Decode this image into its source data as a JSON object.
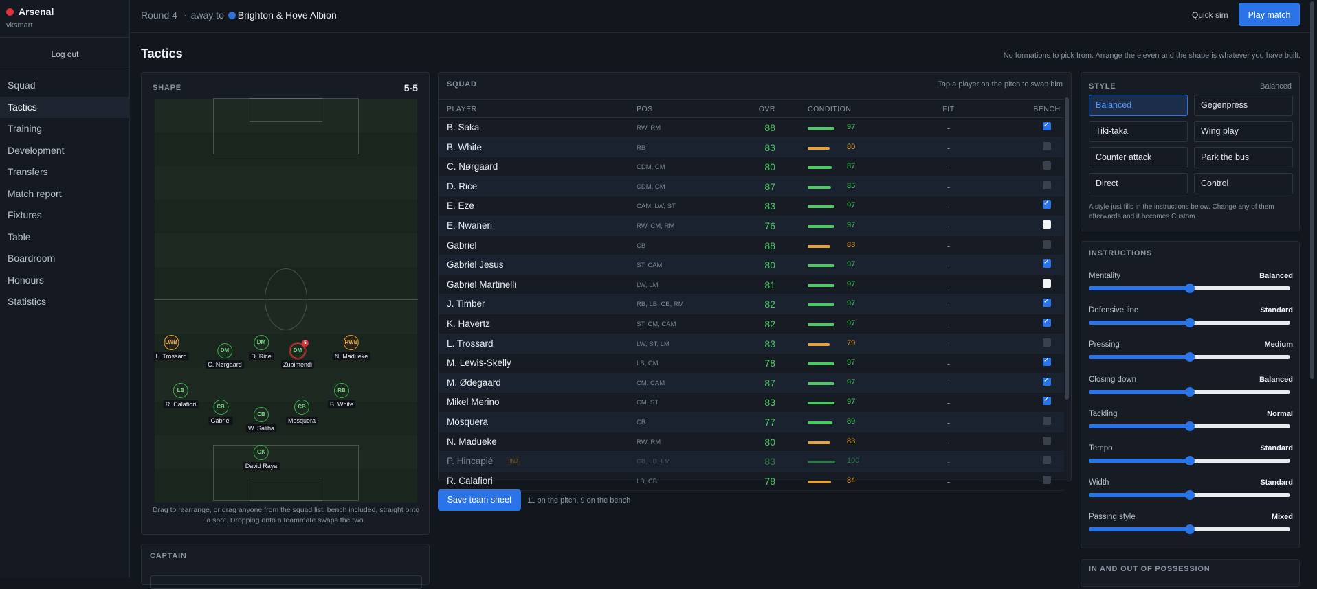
{
  "sidebar": {
    "club": "Arsenal",
    "user": "vksmart",
    "logout": "Log out",
    "items": [
      "Squad",
      "Tactics",
      "Training",
      "Development",
      "Transfers",
      "Match report",
      "Fixtures",
      "Table",
      "Boardroom",
      "Honours",
      "Statistics"
    ],
    "active": "Tactics"
  },
  "topbar": {
    "round": "Round 4",
    "away": "away to",
    "opponent": "Brighton & Hove Albion",
    "quick_sim": "Quick sim",
    "play": "Play match"
  },
  "page": {
    "title": "Tactics",
    "hint": "No formations to pick from. Arrange the eleven and the shape is whatever you have built."
  },
  "shape": {
    "label": "SHAPE",
    "formation": "5-5",
    "caption": "Drag to rearrange, or drag anyone from the squad list, bench included, straight onto a spot. Dropping onto a teammate swaps the two.",
    "players": [
      {
        "pos": "LWB",
        "name": "L. Trossard",
        "wide": true
      },
      {
        "pos": "DM",
        "name": "C. Nørgaard"
      },
      {
        "pos": "DM",
        "name": "D. Rice"
      },
      {
        "pos": "DM",
        "name": "Zubimendi",
        "selected": true,
        "badge": "5"
      },
      {
        "pos": "RWB",
        "name": "N. Madueke",
        "wide": true
      },
      {
        "pos": "LB",
        "name": "R. Calafiori"
      },
      {
        "pos": "CB",
        "name": "Gabriel"
      },
      {
        "pos": "CB",
        "name": "W. Saliba"
      },
      {
        "pos": "CB",
        "name": "Mosquera"
      },
      {
        "pos": "RB",
        "name": "B. White"
      },
      {
        "pos": "GK",
        "name": "David Raya"
      }
    ]
  },
  "captain": {
    "label": "CAPTAIN"
  },
  "squad": {
    "label": "SQUAD",
    "hint": "Tap a player on the pitch to swap him",
    "columns": [
      "PLAYER",
      "POS",
      "OVR",
      "CONDITION",
      "FIT",
      "BENCH"
    ],
    "rows": [
      {
        "name": "B. Saka",
        "pos": "RW, RM",
        "ovr": "88",
        "cond": 97,
        "fit": "-",
        "bench": "on"
      },
      {
        "name": "B. White",
        "pos": "RB",
        "ovr": "83",
        "cond": 80,
        "fit": "-",
        "bench": "off"
      },
      {
        "name": "C. Nørgaard",
        "pos": "CDM, CM",
        "ovr": "80",
        "cond": 87,
        "fit": "-",
        "bench": "off"
      },
      {
        "name": "D. Rice",
        "pos": "CDM, CM",
        "ovr": "87",
        "cond": 85,
        "fit": "-",
        "bench": "off"
      },
      {
        "name": "E. Eze",
        "pos": "CAM, LW, ST",
        "ovr": "83",
        "cond": 97,
        "fit": "-",
        "bench": "on"
      },
      {
        "name": "E. Nwaneri",
        "pos": "RW, CM, RM",
        "ovr": "76",
        "cond": 97,
        "fit": "-",
        "bench": "empty"
      },
      {
        "name": "Gabriel",
        "pos": "CB",
        "ovr": "88",
        "cond": 83,
        "fit": "-",
        "bench": "off"
      },
      {
        "name": "Gabriel Jesus",
        "pos": "ST, CAM",
        "ovr": "80",
        "cond": 97,
        "fit": "-",
        "bench": "on"
      },
      {
        "name": "Gabriel Martinelli",
        "pos": "LW, LM",
        "ovr": "81",
        "cond": 97,
        "fit": "-",
        "bench": "empty"
      },
      {
        "name": "J. Timber",
        "pos": "RB, LB, CB, RM",
        "ovr": "82",
        "cond": 97,
        "fit": "-",
        "bench": "on"
      },
      {
        "name": "K. Havertz",
        "pos": "ST, CM, CAM",
        "ovr": "82",
        "cond": 97,
        "fit": "-",
        "bench": "on"
      },
      {
        "name": "L. Trossard",
        "pos": "LW, ST, LM",
        "ovr": "83",
        "cond": 79,
        "fit": "-",
        "bench": "off"
      },
      {
        "name": "M. Lewis-Skelly",
        "pos": "LB, CM",
        "ovr": "78",
        "cond": 97,
        "fit": "-",
        "bench": "on"
      },
      {
        "name": "M. Ødegaard",
        "pos": "CM, CAM",
        "ovr": "87",
        "cond": 97,
        "fit": "-",
        "bench": "on"
      },
      {
        "name": "Mikel Merino",
        "pos": "CM, ST",
        "ovr": "83",
        "cond": 97,
        "fit": "-",
        "bench": "on"
      },
      {
        "name": "Mosquera",
        "pos": "CB",
        "ovr": "77",
        "cond": 89,
        "fit": "-",
        "bench": "off"
      },
      {
        "name": "N. Madueke",
        "pos": "RW, RM",
        "ovr": "80",
        "cond": 83,
        "fit": "-",
        "bench": "off"
      },
      {
        "name": "P. Hincapié",
        "pos": "CB, LB, LM",
        "ovr": "83",
        "cond": 100,
        "fit": "-",
        "bench": "off",
        "injured": true,
        "tag": "INJ"
      },
      {
        "name": "R. Calafiori",
        "pos": "LB, CB",
        "ovr": "78",
        "cond": 84,
        "fit": "-",
        "bench": "off"
      }
    ],
    "save": "Save team sheet",
    "note": "11 on the pitch, 9 on the bench"
  },
  "style": {
    "label": "STYLE",
    "current": "Balanced",
    "options": [
      "Balanced",
      "Gegenpress",
      "Tiki-taka",
      "Wing play",
      "Counter attack",
      "Park the bus",
      "Direct",
      "Control"
    ],
    "note": "A style just fills in the instructions below. Change any of them afterwards and it becomes Custom."
  },
  "instructions": {
    "label": "INSTRUCTIONS",
    "items": [
      {
        "label": "Mentality",
        "value": "Balanced",
        "level": 0.5
      },
      {
        "label": "Defensive line",
        "value": "Standard",
        "level": 0.5
      },
      {
        "label": "Pressing",
        "value": "Medium",
        "level": 0.5
      },
      {
        "label": "Closing down",
        "value": "Balanced",
        "level": 0.5
      },
      {
        "label": "Tackling",
        "value": "Normal",
        "level": 0.5
      },
      {
        "label": "Tempo",
        "value": "Standard",
        "level": 0.5
      },
      {
        "label": "Width",
        "value": "Standard",
        "level": 0.5
      },
      {
        "label": "Passing style",
        "value": "Mixed",
        "level": 0.5
      }
    ]
  },
  "possession": {
    "label": "IN AND OUT OF POSSESSION"
  },
  "colors": {
    "accent": "#2a74e8",
    "good": "#4cc963",
    "warn": "#e3a23a",
    "club": "#e0303a",
    "opponent": "#2f6fd6"
  }
}
